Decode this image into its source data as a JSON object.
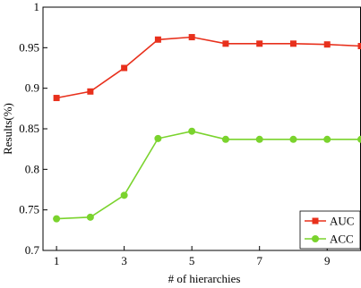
{
  "chart_data": {
    "type": "line",
    "title": "",
    "xlabel": "# of hierarchies",
    "ylabel": "Results(%)",
    "xlim": [
      0.6,
      10.0
    ],
    "ylim": [
      0.7,
      1.0
    ],
    "x_ticks": [
      1,
      3,
      5,
      7,
      9
    ],
    "y_ticks": [
      0.7,
      0.75,
      0.8,
      0.85,
      0.9,
      0.95,
      1
    ],
    "x_tick_labels": [
      "1",
      "3",
      "5",
      "7",
      "9"
    ],
    "y_tick_labels": [
      "0.7",
      "0.75",
      "0.8",
      "0.85",
      "0.9",
      "0.95",
      "1"
    ],
    "grid": false,
    "legend_position": "bottom-right",
    "x": [
      1,
      2,
      3,
      4,
      5,
      6,
      7,
      8,
      9,
      10
    ],
    "series": [
      {
        "name": "AUC",
        "color": "#e8301c",
        "marker": "square",
        "values": [
          0.888,
          0.896,
          0.925,
          0.96,
          0.963,
          0.955,
          0.955,
          0.955,
          0.954,
          0.952
        ]
      },
      {
        "name": "ACC",
        "color": "#7ad32d",
        "marker": "circle",
        "values": [
          0.739,
          0.741,
          0.768,
          0.838,
          0.847,
          0.837,
          0.837,
          0.837,
          0.837,
          0.837
        ]
      }
    ]
  }
}
